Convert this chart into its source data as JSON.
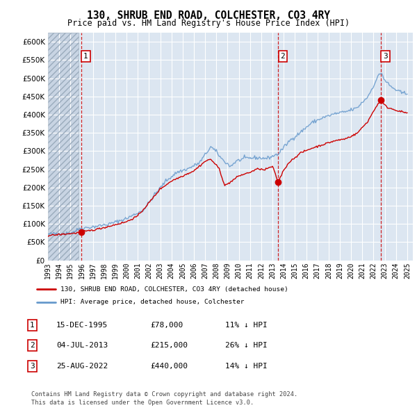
{
  "title": "130, SHRUB END ROAD, COLCHESTER, CO3 4RY",
  "subtitle": "Price paid vs. HM Land Registry's House Price Index (HPI)",
  "legend_label_red": "130, SHRUB END ROAD, COLCHESTER, CO3 4RY (detached house)",
  "legend_label_blue": "HPI: Average price, detached house, Colchester",
  "footer1": "Contains HM Land Registry data © Crown copyright and database right 2024.",
  "footer2": "This data is licensed under the Open Government Licence v3.0.",
  "transactions": [
    {
      "num": 1,
      "date": "15-DEC-1995",
      "date_val": 1995.958,
      "price": 78000,
      "hpi_pct": "11% ↓ HPI"
    },
    {
      "num": 2,
      "date": "04-JUL-2013",
      "date_val": 2013.504,
      "price": 215000,
      "hpi_pct": "26% ↓ HPI"
    },
    {
      "num": 3,
      "date": "25-AUG-2022",
      "date_val": 2022.647,
      "price": 440000,
      "hpi_pct": "14% ↓ HPI"
    }
  ],
  "ylim": [
    0,
    625000
  ],
  "yticks": [
    0,
    50000,
    100000,
    150000,
    200000,
    250000,
    300000,
    350000,
    400000,
    450000,
    500000,
    550000,
    600000
  ],
  "xmin": 1993.0,
  "xmax": 2025.5,
  "hatch_end": 1995.75,
  "bg_color": "#dce6f1",
  "grid_color": "#ffffff",
  "red_color": "#cc0000",
  "blue_color": "#6699cc",
  "hatch_color": "#c8d4e3"
}
